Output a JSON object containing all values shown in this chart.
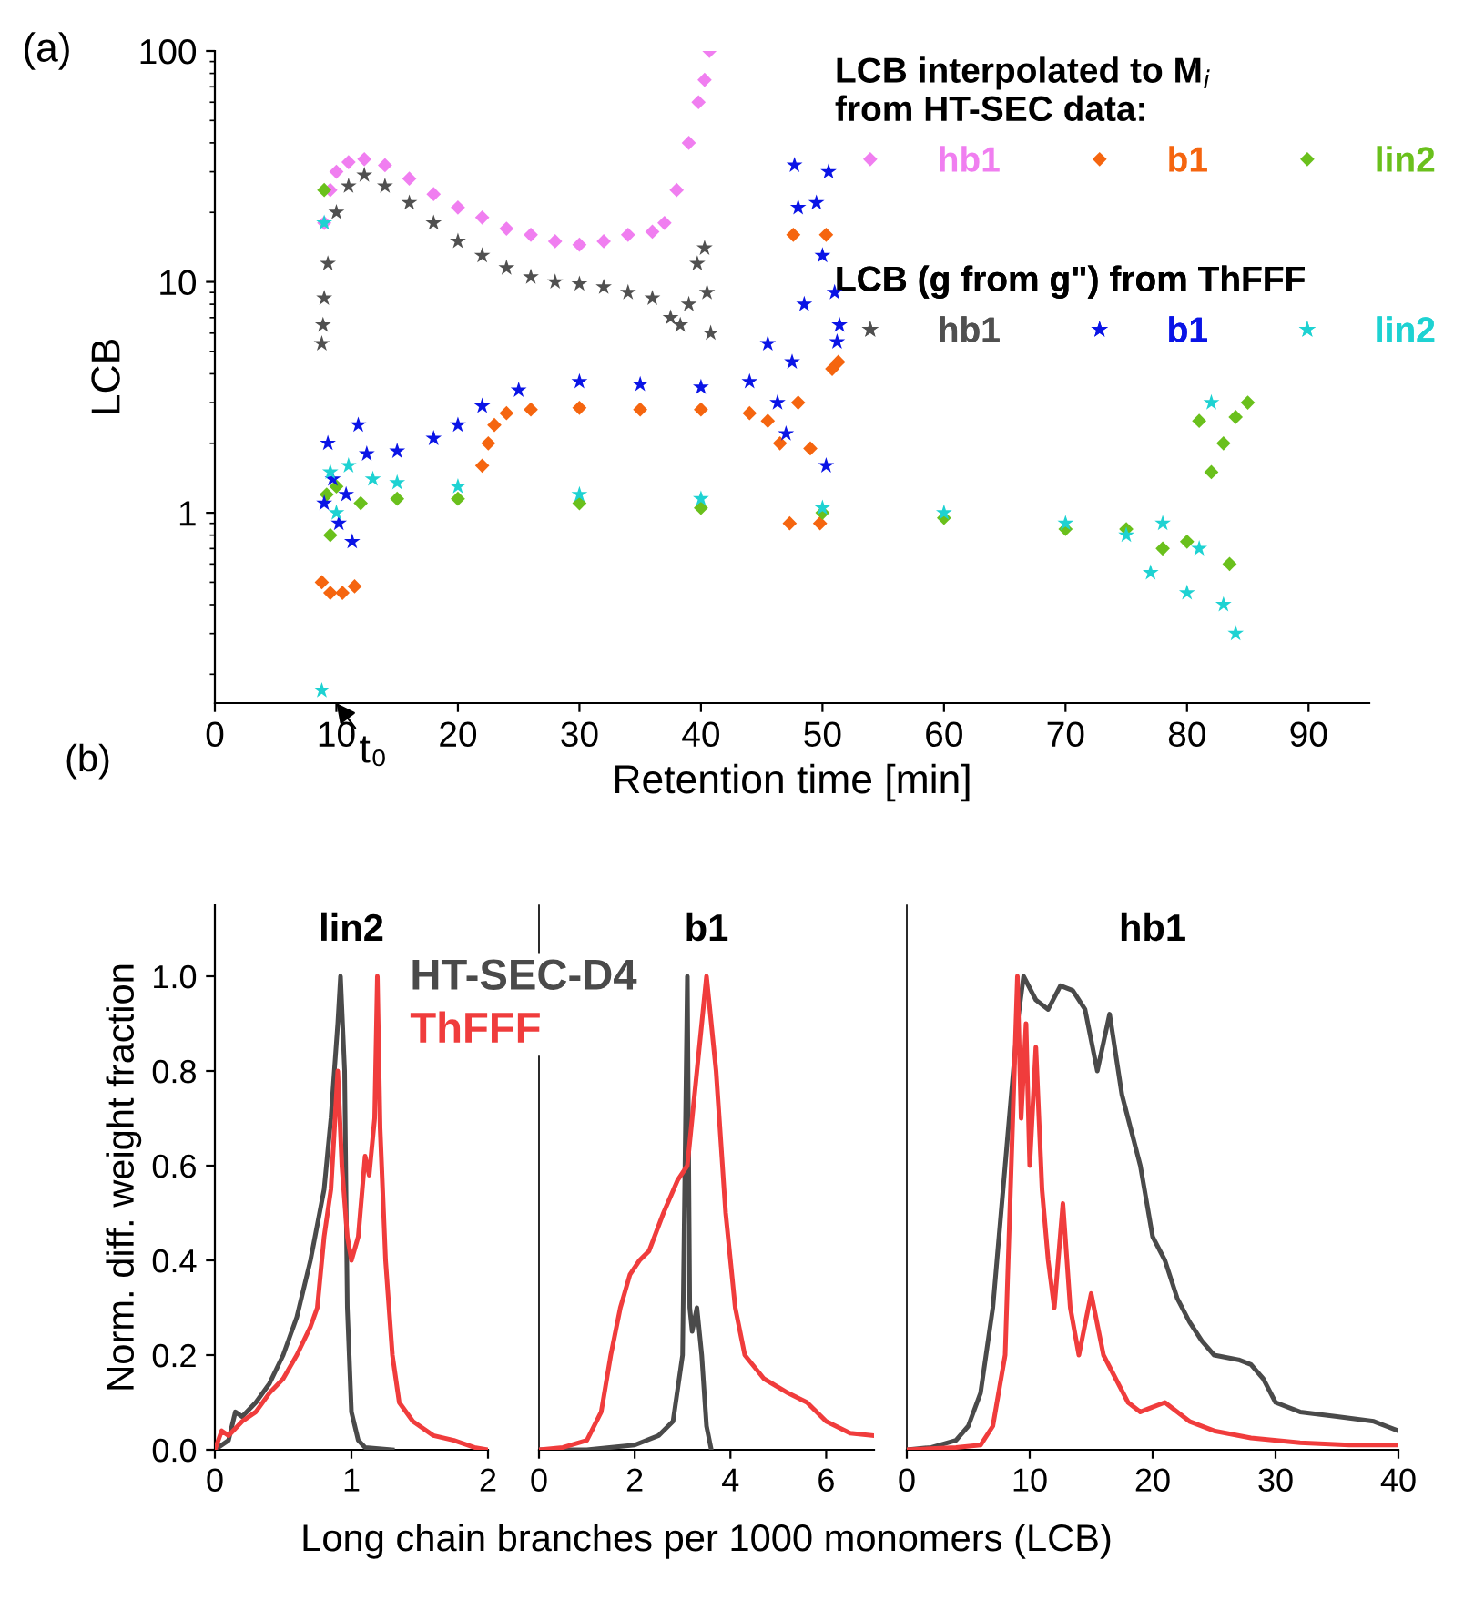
{
  "chart_data": [
    {
      "type": "scatter",
      "xlabel": "Retention time [min]",
      "ylabel": "LCB",
      "log": "y",
      "xlim": [
        0,
        95
      ],
      "xticks": [
        0,
        10,
        20,
        30,
        40,
        50,
        60,
        70,
        80,
        90
      ],
      "ylim": [
        0.15,
        100
      ],
      "yticks": [
        1,
        10,
        100
      ],
      "grid": false,
      "legend": "top right",
      "legend_title": "LCB interpolated to M$_{i}$\nfrom HT-SEC data:",
      "annotations": [
        "(a)",
        "LCB (g from g\") from ThFFF",
        "t₀"
      ],
      "series": [
        {
          "name": "hb1",
          "color": "#f07ef0",
          "marker": "diamond",
          "x": [
            9,
            9.5,
            10,
            11,
            12.3,
            14,
            16,
            18,
            20,
            22,
            24,
            26,
            28,
            30,
            32,
            34,
            36,
            37,
            38,
            39,
            39.8,
            40.3,
            40.7
          ],
          "values": [
            18,
            25,
            30,
            33,
            34,
            32,
            28,
            24,
            21,
            19,
            17,
            16,
            15,
            14.5,
            15,
            16,
            16.5,
            18,
            25,
            40,
            60,
            75,
            100
          ]
        },
        {
          "name": "b1",
          "color": "#f5650f",
          "marker": "diamond",
          "x": [
            8.8,
            9.5,
            10.5,
            11.5,
            22,
            22.5,
            23,
            24,
            26,
            30,
            35,
            40,
            44,
            45.5,
            46.5,
            47.3,
            47.6,
            48,
            49,
            49.8,
            50.3,
            50.8,
            51.3
          ],
          "values": [
            0.5,
            0.45,
            0.45,
            0.48,
            1.6,
            2.0,
            2.4,
            2.7,
            2.8,
            2.85,
            2.8,
            2.8,
            2.7,
            2.5,
            2.0,
            0.9,
            16,
            3.0,
            1.9,
            0.9,
            16,
            4.2,
            4.5
          ]
        },
        {
          "name": "lin2",
          "color": "#6ac01c",
          "marker": "diamond",
          "x": [
            9,
            9.2,
            9.5,
            10,
            12,
            15,
            20,
            30,
            40,
            50,
            60,
            70,
            75,
            78,
            80,
            81,
            82,
            83,
            83.5,
            84,
            85
          ],
          "values": [
            25,
            1.2,
            0.8,
            1.3,
            1.1,
            1.15,
            1.15,
            1.1,
            1.05,
            1.0,
            0.95,
            0.85,
            0.85,
            0.7,
            0.75,
            2.5,
            1.5,
            2.0,
            0.6,
            2.6,
            3.0
          ]
        },
        {
          "name": "hb1",
          "color": "#505050",
          "marker": "star",
          "x": [
            8.8,
            8.9,
            9,
            9.3,
            10,
            11,
            12.3,
            14,
            16,
            18,
            20,
            22,
            24,
            26,
            28,
            30,
            32,
            34,
            36,
            37.5,
            38.3,
            39,
            39.7,
            40.3,
            40.5,
            40.8
          ],
          "values": [
            5.4,
            6.5,
            8.5,
            12,
            20,
            26,
            29,
            26,
            22,
            18,
            15,
            13,
            11.5,
            10.5,
            10,
            9.8,
            9.5,
            9,
            8.5,
            7,
            6.5,
            8,
            12,
            14,
            9,
            6
          ]
        },
        {
          "name": "b1",
          "color": "#0a14e6",
          "marker": "star",
          "x": [
            9,
            9.3,
            9.7,
            10.2,
            10.8,
            11.3,
            11.8,
            12.5,
            15,
            18,
            20,
            22,
            25,
            30,
            35,
            40,
            44,
            45.5,
            46.3,
            47,
            47.5,
            47.7,
            48,
            48.5,
            49.5,
            50,
            50.3,
            50.5,
            51,
            51.2,
            51.4
          ],
          "values": [
            1.1,
            2.0,
            1.4,
            0.9,
            1.2,
            0.75,
            2.4,
            1.8,
            1.85,
            2.1,
            2.4,
            2.9,
            3.4,
            3.7,
            3.6,
            3.5,
            3.7,
            5.4,
            3,
            2.2,
            4.5,
            32,
            21,
            8,
            22,
            13,
            1.6,
            30,
            9,
            5.5,
            6.5
          ]
        },
        {
          "name": "lin2",
          "color": "#1ed2d2",
          "marker": "star",
          "x": [
            8.8,
            9,
            9.5,
            10,
            11,
            13,
            15,
            20,
            30,
            40,
            50,
            60,
            70,
            75,
            77,
            78,
            80,
            81,
            82,
            83,
            84
          ],
          "values": [
            0.17,
            18,
            1.5,
            1.0,
            1.6,
            1.4,
            1.35,
            1.3,
            1.2,
            1.15,
            1.05,
            1.0,
            0.9,
            0.8,
            0.55,
            0.9,
            0.45,
            0.7,
            3.0,
            0.4,
            0.3
          ]
        }
      ]
    },
    {
      "type": "line",
      "title": "lin2",
      "ylabel": "Norm. diff. weight fraction",
      "xlim": [
        0,
        2
      ],
      "xticks": [
        0,
        1,
        2
      ],
      "ylim": [
        0,
        1.15
      ],
      "yticks": [
        {
          "value": 0,
          "label": "0.0"
        },
        {
          "value": 0.2,
          "label": "0.2"
        },
        {
          "value": 0.4,
          "label": "0.4"
        },
        {
          "value": 0.6,
          "label": "0.6"
        },
        {
          "value": 0.8,
          "label": "0.8"
        },
        {
          "value": 1,
          "label": "1.0"
        }
      ],
      "legend": "top right",
      "annotations": [
        "(b)"
      ],
      "series": [
        {
          "name": "HT-SEC-D4",
          "color": "#4a4a4a",
          "x": [
            0,
            0.1,
            0.15,
            0.2,
            0.3,
            0.4,
            0.5,
            0.6,
            0.7,
            0.8,
            0.85,
            0.9,
            0.92,
            0.95,
            0.97,
            1.0,
            1.05,
            1.1,
            1.3
          ],
          "values": [
            0,
            0.02,
            0.08,
            0.07,
            0.1,
            0.14,
            0.2,
            0.28,
            0.4,
            0.55,
            0.7,
            0.9,
            1.0,
            0.8,
            0.3,
            0.08,
            0.02,
            0.005,
            0
          ]
        },
        {
          "name": "ThFFF",
          "color": "#f03c3c",
          "x": [
            0,
            0.05,
            0.1,
            0.2,
            0.3,
            0.4,
            0.5,
            0.6,
            0.7,
            0.75,
            0.8,
            0.85,
            0.9,
            0.93,
            0.97,
            1.0,
            1.05,
            1.1,
            1.13,
            1.17,
            1.19,
            1.21,
            1.25,
            1.3,
            1.35,
            1.45,
            1.6,
            1.75,
            1.9,
            2.0
          ],
          "values": [
            0,
            0.04,
            0.03,
            0.06,
            0.08,
            0.12,
            0.15,
            0.2,
            0.26,
            0.3,
            0.45,
            0.55,
            0.8,
            0.6,
            0.45,
            0.4,
            0.45,
            0.62,
            0.58,
            0.7,
            1.0,
            0.68,
            0.4,
            0.2,
            0.1,
            0.06,
            0.03,
            0.02,
            0.005,
            0
          ]
        }
      ]
    },
    {
      "type": "line",
      "title": "b1",
      "xlabel": "Long chain branches per 1000 monomers (LCB)",
      "xlim": [
        0,
        7
      ],
      "xticks": [
        0,
        2,
        4,
        6
      ],
      "ylim": [
        0,
        1.15
      ],
      "tick_labels": "x",
      "series": [
        {
          "color": "#4a4a4a",
          "x": [
            0,
            1,
            2,
            2.5,
            2.8,
            3.0,
            3.05,
            3.1,
            3.15,
            3.2,
            3.3,
            3.4,
            3.5,
            3.6
          ],
          "values": [
            0,
            0,
            0.01,
            0.03,
            0.06,
            0.2,
            0.6,
            1.0,
            0.3,
            0.25,
            0.3,
            0.2,
            0.05,
            0
          ]
        },
        {
          "color": "#f03c3c",
          "x": [
            0,
            0.5,
            1.0,
            1.3,
            1.5,
            1.7,
            1.9,
            2.1,
            2.3,
            2.6,
            2.9,
            3.1,
            3.3,
            3.5,
            3.7,
            3.9,
            4.1,
            4.3,
            4.7,
            5.2,
            5.6,
            6.0,
            6.5,
            7.0
          ],
          "values": [
            0,
            0.005,
            0.02,
            0.08,
            0.2,
            0.3,
            0.37,
            0.4,
            0.42,
            0.5,
            0.57,
            0.6,
            0.8,
            1.0,
            0.8,
            0.5,
            0.3,
            0.2,
            0.15,
            0.12,
            0.1,
            0.06,
            0.035,
            0.03
          ]
        }
      ]
    },
    {
      "type": "line",
      "title": "hb1",
      "xlim": [
        0,
        40
      ],
      "xticks": [
        0,
        10,
        20,
        30,
        40
      ],
      "ylim": [
        0,
        1.15
      ],
      "tick_labels": "x",
      "series": [
        {
          "color": "#4a4a4a",
          "x": [
            0,
            2,
            4,
            5,
            6,
            7,
            8,
            9,
            9.5,
            10.5,
            11.5,
            12.5,
            13.5,
            14.5,
            15.5,
            16.5,
            17.5,
            18.5,
            19,
            20,
            21,
            22,
            23,
            24,
            25,
            27,
            28,
            29,
            30,
            32,
            35,
            38,
            40
          ],
          "values": [
            0,
            0.005,
            0.02,
            0.05,
            0.12,
            0.3,
            0.6,
            0.9,
            1.0,
            0.95,
            0.93,
            0.98,
            0.97,
            0.93,
            0.8,
            0.92,
            0.75,
            0.65,
            0.6,
            0.45,
            0.4,
            0.32,
            0.27,
            0.23,
            0.2,
            0.19,
            0.18,
            0.15,
            0.1,
            0.08,
            0.07,
            0.06,
            0.04
          ]
        },
        {
          "color": "#f03c3c",
          "x": [
            0,
            4,
            6,
            7,
            8,
            8.5,
            9,
            9.3,
            9.7,
            10,
            10.5,
            11,
            11.5,
            12,
            12.7,
            13.3,
            14,
            15,
            16,
            17,
            18,
            19,
            20,
            21,
            23,
            25,
            28,
            32,
            36,
            40
          ],
          "values": [
            0,
            0.005,
            0.01,
            0.05,
            0.2,
            0.6,
            1.0,
            0.7,
            0.9,
            0.6,
            0.85,
            0.55,
            0.4,
            0.3,
            0.52,
            0.3,
            0.2,
            0.33,
            0.2,
            0.15,
            0.1,
            0.08,
            0.09,
            0.1,
            0.06,
            0.04,
            0.025,
            0.015,
            0.01,
            0.01
          ]
        }
      ]
    }
  ]
}
